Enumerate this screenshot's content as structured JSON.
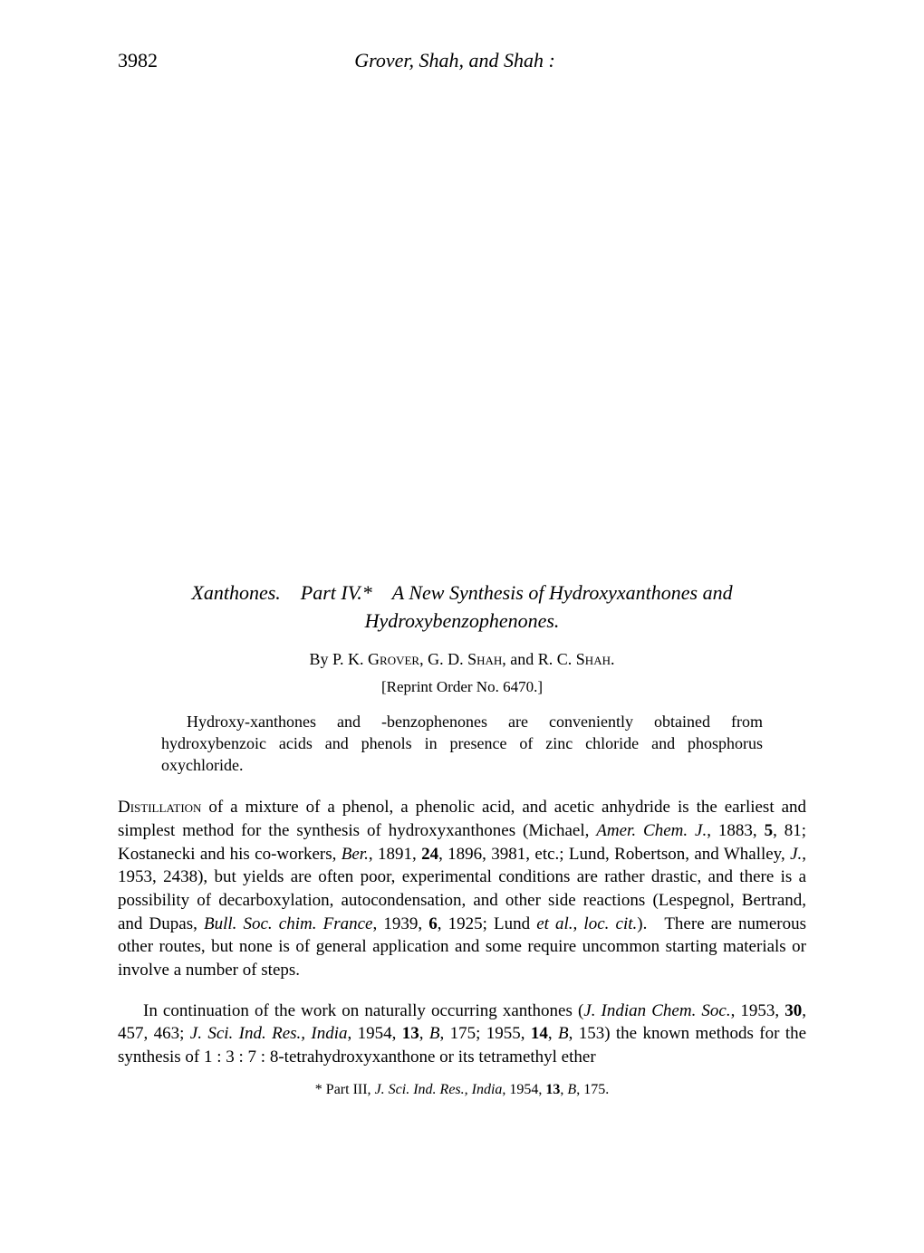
{
  "page_number": "3982",
  "running_head": "Grover, Shah, and Shah :",
  "title_line1": "Xanthones. Part IV.* A New Synthesis of Hydroxyxanthones and",
  "title_line2": "Hydroxybenzophenones.",
  "authors_by": "By ",
  "authors_name1": "P. K. Grover, G. D. Shah,",
  "authors_and": " and ",
  "authors_name2": "R. C. Shah.",
  "reprint": "[Reprint Order No. 6470.]",
  "abstract_text": "Hydroxy-xanthones and -benzophenones are conveniently obtained from hydroxybenzoic acids and phenols in presence of zinc chloride and phosphorus oxychloride.",
  "p1_lead": "Distillation",
  "p1_a": " of a mixture of a phenol, a phenolic acid, and acetic anhydride is the earliest and simplest method for the synthesis of hydroxyxanthones (Michael, ",
  "p1_i1": "Amer. Chem. J.",
  "p1_b": ", 1883, ",
  "p1_b1": "5",
  "p1_c": ", 81; Kostanecki and his co-workers, ",
  "p1_i2": "Ber.",
  "p1_d": ", 1891, ",
  "p1_b2": "24",
  "p1_e": ", 1896, 3981, etc.; Lund, Robertson, and Whalley, ",
  "p1_i3": "J.",
  "p1_f": ", 1953, 2438), but yields are often poor, experimental conditions are rather drastic, and there is a possibility of decarboxylation, autocondensation, and other side reactions (Lespegnol, Bertrand, and Dupas, ",
  "p1_i4": "Bull. Soc. chim. France",
  "p1_g": ", 1939, ",
  "p1_b3": "6",
  "p1_h": ", 1925; Lund ",
  "p1_i5": "et al., loc. cit.",
  "p1_j": "). There are numerous other routes, but none is of general application and some require uncommon starting materials or involve a number of steps.",
  "p2_a": "In continuation of the work on naturally occurring xanthones (",
  "p2_i1": "J. Indian Chem. Soc.",
  "p2_b": ", 1953, ",
  "p2_b1": "30",
  "p2_c": ", 457, 463; ",
  "p2_i2": "J. Sci. Ind. Res., India",
  "p2_d": ", 1954, ",
  "p2_b2": "13",
  "p2_e": ", ",
  "p2_i3": "B",
  "p2_f": ", 175; 1955, ",
  "p2_b3": "14",
  "p2_g": ", ",
  "p2_i4": "B",
  "p2_h": ", 153) the known methods for the synthesis of 1 : 3 : 7 : 8-tetrahydroxyxanthone or its tetramethyl ether",
  "fn_a": "* Part III, ",
  "fn_i1": "J. Sci. Ind. Res., India",
  "fn_b": ", 1954, ",
  "fn_b1": "13",
  "fn_c": ", ",
  "fn_i2": "B",
  "fn_d": ", 175."
}
